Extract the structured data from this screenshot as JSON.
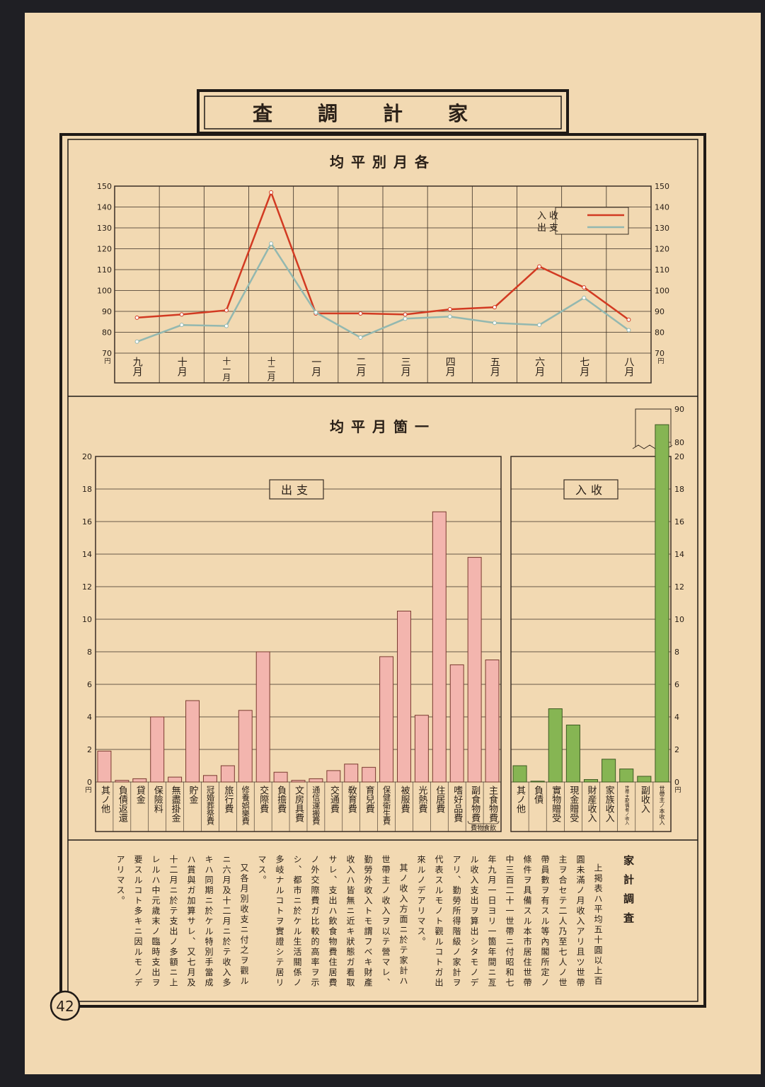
{
  "page_number": "42",
  "title": "家計調査",
  "chart_data": [
    {
      "type": "line",
      "title": "各月別平均",
      "categories": [
        "九月",
        "十月",
        "十一月",
        "十二月",
        "一月",
        "二月",
        "三月",
        "四月",
        "五月",
        "六月",
        "七月",
        "八月"
      ],
      "series": [
        {
          "name": "收入",
          "color": "#d23a22",
          "values": [
            87,
            88.5,
            90.5,
            147,
            89,
            89,
            88.5,
            91,
            92,
            111.5,
            101.5,
            86
          ]
        },
        {
          "name": "支出",
          "color": "#93b8b0",
          "values": [
            75.5,
            83.5,
            83,
            122.5,
            89.5,
            77.5,
            86.5,
            87.5,
            84.5,
            83.5,
            96.5,
            81
          ]
        }
      ],
      "ylim": [
        70,
        150
      ],
      "yticks": [
        70,
        80,
        90,
        100,
        110,
        120,
        130,
        140,
        150
      ],
      "unit": "円",
      "grid": true,
      "legend": "upper right"
    },
    {
      "type": "bar",
      "title": "一箇月平均",
      "label": "支出",
      "categories": [
        "其ノ他",
        "負債返還",
        "貸金",
        "保險料",
        "無盡掛金",
        "貯金",
        "冠婚葬祭費",
        "旅行費",
        "修養娯樂費",
        "交際費",
        "負擔費",
        "文房具費",
        "通信運搬費",
        "交通費",
        "敎育費",
        "育兒費",
        "保健衛生費",
        "被服費",
        "光熱費",
        "住居費",
        "嗜好品費",
        "副食物費",
        "主食物費"
      ],
      "values": [
        1.9,
        0.1,
        0.2,
        4.0,
        0.3,
        5.0,
        0.4,
        1.0,
        4.4,
        8.0,
        0.6,
        0.1,
        0.2,
        0.7,
        1.1,
        0.9,
        7.7,
        10.5,
        4.1,
        16.6,
        7.2,
        13.8,
        7.5
      ],
      "color": "#f3b5ae",
      "ylim": [
        0,
        20
      ],
      "yticks": [
        0,
        2,
        4,
        6,
        8,
        10,
        12,
        14,
        16,
        18,
        20
      ],
      "unit": "円",
      "grid": true,
      "annotation": "飲食物費"
    },
    {
      "type": "bar",
      "label": "收入",
      "categories": [
        "其ノ他",
        "負債",
        "實物贈受",
        "現金贈受",
        "財産收入",
        "家族收入",
        "世帶主配偶者ノ收入",
        "副收入",
        "世帶主ノ本收入"
      ],
      "values": [
        1.0,
        0.05,
        4.5,
        3.5,
        0.15,
        1.4,
        0.8,
        0.35,
        85.3
      ],
      "color": "#86b553",
      "ylim": [
        0,
        20
      ],
      "yticks": [
        0,
        2,
        4,
        6,
        8,
        10,
        12,
        14,
        16,
        18,
        20
      ],
      "y2lim": [
        80,
        90
      ],
      "y2ticks": [
        80,
        90
      ],
      "unit": "円",
      "grid": true
    }
  ],
  "text": {
    "title": "家計調査",
    "paragraphs": [
      "上掲表ハ平均五十圓以上百圓未滿ノ月收入アリ且ツ世帶主ヲ合セテ二人乃至七人ノ世帶員數ヲ有スル等內閣所定ノ條件ヲ具備スル本市居住世帶中三百二十一世帶ニ付昭和七年九月一日ヨリ一箇年間ニ亙ル收入支出ヲ算出シタモノデアリ、勤勞所得階級ノ家計ヲ代表スルモノト觀ルコトガ出來ルノデアリマス。",
      "其ノ收入方面ニ於テ家計ハ世帶主ノ收入ヲ以テ營マレ、勤勞外收入トモ謂フベキ財產收入ハ皆無ニ近キ狀態ガ看取サレ、支出ハ飲食物費住居費ノ外交際費ガ比較的高率ヲ示シ、都市ニ於ケル生活關係ノ多岐ナルコトヲ實證シテ居リマス。",
      "又各月別收支ニ付之ヲ觀ルニ六月及十二月ニ於テ收入多キハ同期ニ於ケル特別手當成ハ賞與ガ加算サレ、又七月及十二月ニ於テ支出ノ多額ニ上レルハ中元歲末ノ臨時支出ヲ要スルコト多キニ因ルモノデアリマス。"
    ]
  }
}
